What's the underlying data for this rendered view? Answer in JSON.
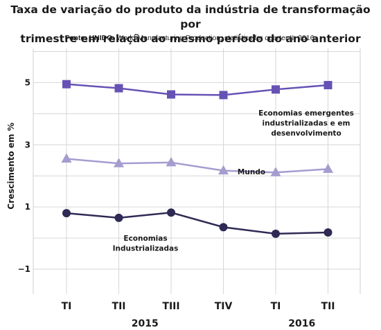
{
  "title_line1": "Taxa de variação do produto da indústria de transformação por",
  "title_line2": "trimestre em relação ao mesmo período do ano anterior",
  "source_label": "Fonte: UNIDO",
  "source_text": ", World Manufacturing Production, statistics for quarter II, 2016.",
  "chart_data": {
    "type": "line",
    "ylabel": "Crescimento em %",
    "ylim": [
      -1.8,
      6.1
    ],
    "yticks": [
      -1,
      1,
      3,
      5
    ],
    "grid": true,
    "categories": [
      "TI",
      "TII",
      "TIII",
      "TIV",
      "TI",
      "TII"
    ],
    "year_labels": [
      {
        "label": "2015",
        "span": [
          0,
          3
        ]
      },
      {
        "label": "2016",
        "span": [
          4,
          5
        ]
      }
    ],
    "series": [
      {
        "name": "Economias emergentes industrializadas e em desenvolvimento",
        "label_lines": [
          "Economias emergentes",
          "industrializadas e em",
          "desenvolvimento"
        ],
        "marker": "square",
        "color": "#6652b5",
        "values": [
          4.95,
          4.82,
          4.62,
          4.6,
          4.78,
          4.92
        ]
      },
      {
        "name": "Mundo",
        "label_lines": [
          "Mundo"
        ],
        "marker": "triangle",
        "color": "#a59ccf",
        "values": [
          2.55,
          2.4,
          2.43,
          2.17,
          2.11,
          2.22
        ]
      },
      {
        "name": "Economias Industrializadas",
        "label_lines": [
          "Economias",
          "Industrializadas"
        ],
        "marker": "circle",
        "color": "#2e2a55",
        "values": [
          0.8,
          0.65,
          0.82,
          0.35,
          0.14,
          0.18
        ]
      }
    ]
  }
}
